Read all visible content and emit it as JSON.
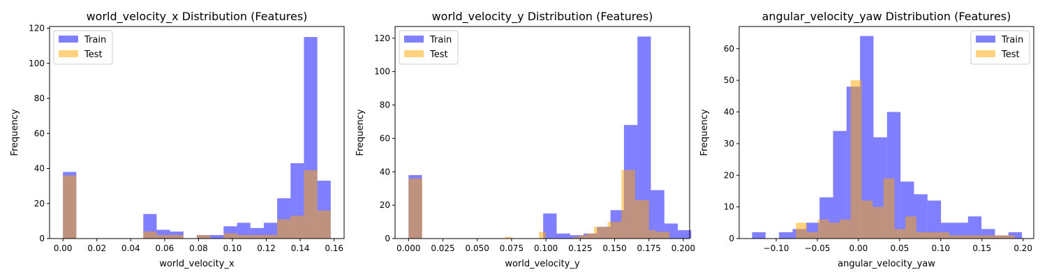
{
  "colors": {
    "train": "#0000ff",
    "test": "#ffa500",
    "train_alpha": 0.5,
    "test_alpha": 0.5
  },
  "chart_data": [
    {
      "type": "histogram",
      "title": "world_velocity_x Distribution (Features)",
      "xlabel": "world_velocity_x",
      "ylabel": "Frequency",
      "xlim": [
        -0.0079,
        0.1659
      ],
      "ylim": [
        0,
        121
      ],
      "xticks": [
        0.0,
        0.02,
        0.04,
        0.06,
        0.08,
        0.1,
        0.12,
        0.14,
        0.16
      ],
      "xtick_labels": [
        "0.00",
        "0.02",
        "0.04",
        "0.06",
        "0.08",
        "0.10",
        "0.12",
        "0.14",
        "0.16"
      ],
      "yticks": [
        0,
        20,
        40,
        60,
        80,
        100,
        120
      ],
      "ytick_labels": [
        "0",
        "20",
        "40",
        "60",
        "80",
        "100",
        "120"
      ],
      "legend": {
        "position": "top-left",
        "entries": [
          "Train",
          "Test"
        ]
      },
      "series": [
        {
          "name": "Train",
          "color": "train",
          "bins": [
            {
              "x0": 0.0,
              "x1": 0.0079,
              "y": 38
            },
            {
              "x0": 0.0474,
              "x1": 0.0553,
              "y": 14
            },
            {
              "x0": 0.0553,
              "x1": 0.0632,
              "y": 5
            },
            {
              "x0": 0.0632,
              "x1": 0.0711,
              "y": 4
            },
            {
              "x0": 0.079,
              "x1": 0.0869,
              "y": 2
            },
            {
              "x0": 0.0869,
              "x1": 0.0948,
              "y": 2
            },
            {
              "x0": 0.0948,
              "x1": 0.1027,
              "y": 7
            },
            {
              "x0": 0.1027,
              "x1": 0.1106,
              "y": 9
            },
            {
              "x0": 0.1106,
              "x1": 0.1185,
              "y": 6
            },
            {
              "x0": 0.1185,
              "x1": 0.1264,
              "y": 9
            },
            {
              "x0": 0.1264,
              "x1": 0.1343,
              "y": 23
            },
            {
              "x0": 0.1343,
              "x1": 0.1422,
              "y": 43
            },
            {
              "x0": 0.1422,
              "x1": 0.1501,
              "y": 115
            },
            {
              "x0": 0.1501,
              "x1": 0.158,
              "y": 33
            }
          ]
        },
        {
          "name": "Test",
          "color": "test",
          "bins": [
            {
              "x0": 0.0,
              "x1": 0.0079,
              "y": 36
            },
            {
              "x0": 0.0474,
              "x1": 0.0553,
              "y": 4
            },
            {
              "x0": 0.0553,
              "x1": 0.0632,
              "y": 2
            },
            {
              "x0": 0.0632,
              "x1": 0.0711,
              "y": 2
            },
            {
              "x0": 0.079,
              "x1": 0.0869,
              "y": 2
            },
            {
              "x0": 0.0948,
              "x1": 0.1027,
              "y": 3
            },
            {
              "x0": 0.1027,
              "x1": 0.1106,
              "y": 2
            },
            {
              "x0": 0.1106,
              "x1": 0.1185,
              "y": 2
            },
            {
              "x0": 0.1185,
              "x1": 0.1264,
              "y": 2
            },
            {
              "x0": 0.1264,
              "x1": 0.1343,
              "y": 11
            },
            {
              "x0": 0.1343,
              "x1": 0.1422,
              "y": 13
            },
            {
              "x0": 0.1422,
              "x1": 0.1501,
              "y": 39
            },
            {
              "x0": 0.1501,
              "x1": 0.158,
              "y": 16
            }
          ]
        }
      ]
    },
    {
      "type": "histogram",
      "title": "world_velocity_y Distribution (Features)",
      "xlabel": "world_velocity_y",
      "ylabel": "Frequency",
      "xlim": [
        -0.0098,
        0.2046
      ],
      "ylim": [
        0,
        127
      ],
      "xticks": [
        0.0,
        0.025,
        0.05,
        0.075,
        0.1,
        0.125,
        0.15,
        0.175,
        0.2
      ],
      "xtick_labels": [
        "0.000",
        "0.025",
        "0.050",
        "0.075",
        "0.100",
        "0.125",
        "0.150",
        "0.175",
        "0.200"
      ],
      "yticks": [
        0,
        20,
        40,
        60,
        80,
        100,
        120
      ],
      "ytick_labels": [
        "0",
        "20",
        "40",
        "60",
        "80",
        "100",
        "120"
      ],
      "legend": {
        "position": "top-left",
        "entries": [
          "Train",
          "Test"
        ]
      },
      "series": [
        {
          "name": "Train",
          "color": "train",
          "bins": [
            {
              "x0": 0.0,
              "x1": 0.0098,
              "y": 38
            },
            {
              "x0": 0.098,
              "x1": 0.1078,
              "y": 15
            },
            {
              "x0": 0.1078,
              "x1": 0.1176,
              "y": 3
            },
            {
              "x0": 0.1176,
              "x1": 0.1274,
              "y": 2
            },
            {
              "x0": 0.1274,
              "x1": 0.1372,
              "y": 3
            },
            {
              "x0": 0.1372,
              "x1": 0.147,
              "y": 7
            },
            {
              "x0": 0.147,
              "x1": 0.1568,
              "y": 17
            },
            {
              "x0": 0.1568,
              "x1": 0.1666,
              "y": 68
            },
            {
              "x0": 0.1666,
              "x1": 0.1764,
              "y": 121
            },
            {
              "x0": 0.1764,
              "x1": 0.1862,
              "y": 29
            },
            {
              "x0": 0.1862,
              "x1": 0.196,
              "y": 9
            },
            {
              "x0": 0.196,
              "x1": 0.2058,
              "y": 5
            }
          ]
        },
        {
          "name": "Test",
          "color": "test",
          "bins": [
            {
              "x0": 0.0,
              "x1": 0.005,
              "y": 36
            },
            {
              "x0": 0.005,
              "x1": 0.01,
              "y": 36
            },
            {
              "x0": 0.07,
              "x1": 0.075,
              "y": 1
            },
            {
              "x0": 0.095,
              "x1": 0.1,
              "y": 4
            },
            {
              "x0": 0.12,
              "x1": 0.125,
              "y": 1
            },
            {
              "x0": 0.125,
              "x1": 0.13,
              "y": 2
            },
            {
              "x0": 0.13,
              "x1": 0.135,
              "y": 3
            },
            {
              "x0": 0.135,
              "x1": 0.14,
              "y": 7
            },
            {
              "x0": 0.14,
              "x1": 0.145,
              "y": 7
            },
            {
              "x0": 0.145,
              "x1": 0.15,
              "y": 10
            },
            {
              "x0": 0.15,
              "x1": 0.155,
              "y": 10
            },
            {
              "x0": 0.155,
              "x1": 0.16,
              "y": 41
            },
            {
              "x0": 0.16,
              "x1": 0.165,
              "y": 41
            },
            {
              "x0": 0.165,
              "x1": 0.17,
              "y": 23
            },
            {
              "x0": 0.17,
              "x1": 0.175,
              "y": 23
            },
            {
              "x0": 0.175,
              "x1": 0.18,
              "y": 5
            },
            {
              "x0": 0.18,
              "x1": 0.185,
              "y": 4
            },
            {
              "x0": 0.185,
              "x1": 0.19,
              "y": 4
            }
          ]
        }
      ]
    },
    {
      "type": "histogram",
      "title": "angular_velocity_yaw Distribution (Features)",
      "xlabel": "angular_velocity_yaw",
      "ylabel": "Frequency",
      "xlim": [
        -0.145,
        0.213
      ],
      "ylim": [
        0,
        67
      ],
      "xticks": [
        -0.1,
        -0.05,
        0.0,
        0.05,
        0.1,
        0.15,
        0.2
      ],
      "xtick_labels": [
        "−0.10",
        "−0.05",
        "0.00",
        "0.05",
        "0.10",
        "0.15",
        "0.20"
      ],
      "yticks": [
        0,
        10,
        20,
        30,
        40,
        50,
        60
      ],
      "ytick_labels": [
        "0",
        "10",
        "20",
        "30",
        "40",
        "50",
        "60"
      ],
      "legend": {
        "position": "top-right",
        "entries": [
          "Train",
          "Test"
        ]
      },
      "series": [
        {
          "name": "Train",
          "color": "train",
          "bins": [
            {
              "x0": -0.1293,
              "x1": -0.1129,
              "y": 2
            },
            {
              "x0": -0.0965,
              "x1": -0.0801,
              "y": 2
            },
            {
              "x0": -0.0801,
              "x1": -0.0637,
              "y": 3
            },
            {
              "x0": -0.0637,
              "x1": -0.0473,
              "y": 5
            },
            {
              "x0": -0.0473,
              "x1": -0.0309,
              "y": 13
            },
            {
              "x0": -0.0309,
              "x1": -0.0145,
              "y": 34
            },
            {
              "x0": -0.0145,
              "x1": 0.0019,
              "y": 48
            },
            {
              "x0": 0.0019,
              "x1": 0.0183,
              "y": 64
            },
            {
              "x0": 0.0183,
              "x1": 0.0347,
              "y": 32
            },
            {
              "x0": 0.0347,
              "x1": 0.0511,
              "y": 40
            },
            {
              "x0": 0.0511,
              "x1": 0.0675,
              "y": 18
            },
            {
              "x0": 0.0675,
              "x1": 0.0839,
              "y": 14
            },
            {
              "x0": 0.0839,
              "x1": 0.1003,
              "y": 12
            },
            {
              "x0": 0.1003,
              "x1": 0.1167,
              "y": 5
            },
            {
              "x0": 0.1167,
              "x1": 0.1331,
              "y": 5
            },
            {
              "x0": 0.1331,
              "x1": 0.1495,
              "y": 7
            },
            {
              "x0": 0.1495,
              "x1": 0.1659,
              "y": 3
            },
            {
              "x0": 0.1659,
              "x1": 0.1823,
              "y": 1
            },
            {
              "x0": 0.1823,
              "x1": 0.1987,
              "y": 2
            }
          ]
        },
        {
          "name": "Test",
          "color": "test",
          "bins": [
            {
              "x0": -0.076,
              "x1": -0.0627,
              "y": 5
            },
            {
              "x0": -0.0627,
              "x1": -0.0494,
              "y": 2
            },
            {
              "x0": -0.0494,
              "x1": -0.0361,
              "y": 6
            },
            {
              "x0": -0.0361,
              "x1": -0.0228,
              "y": 5
            },
            {
              "x0": -0.0228,
              "x1": -0.0095,
              "y": 6
            },
            {
              "x0": -0.0095,
              "x1": 0.0038,
              "y": 50
            },
            {
              "x0": 0.0038,
              "x1": 0.0171,
              "y": 12
            },
            {
              "x0": 0.0171,
              "x1": 0.0304,
              "y": 10
            },
            {
              "x0": 0.0304,
              "x1": 0.0437,
              "y": 19
            },
            {
              "x0": 0.0437,
              "x1": 0.057,
              "y": 3
            },
            {
              "x0": 0.057,
              "x1": 0.0703,
              "y": 7
            },
            {
              "x0": 0.0703,
              "x1": 0.0836,
              "y": 2
            },
            {
              "x0": 0.0836,
              "x1": 0.0969,
              "y": 2
            },
            {
              "x0": 0.0969,
              "x1": 0.1102,
              "y": 2
            },
            {
              "x0": 0.1102,
              "x1": 0.1235,
              "y": 1
            },
            {
              "x0": 0.1235,
              "x1": 0.1368,
              "y": 1
            },
            {
              "x0": 0.1368,
              "x1": 0.1501,
              "y": 1
            },
            {
              "x0": 0.1501,
              "x1": 0.1634,
              "y": 1
            },
            {
              "x0": 0.1634,
              "x1": 0.1767,
              "y": 1
            },
            {
              "x0": 0.1767,
              "x1": 0.19,
              "y": 1
            }
          ]
        }
      ]
    }
  ]
}
